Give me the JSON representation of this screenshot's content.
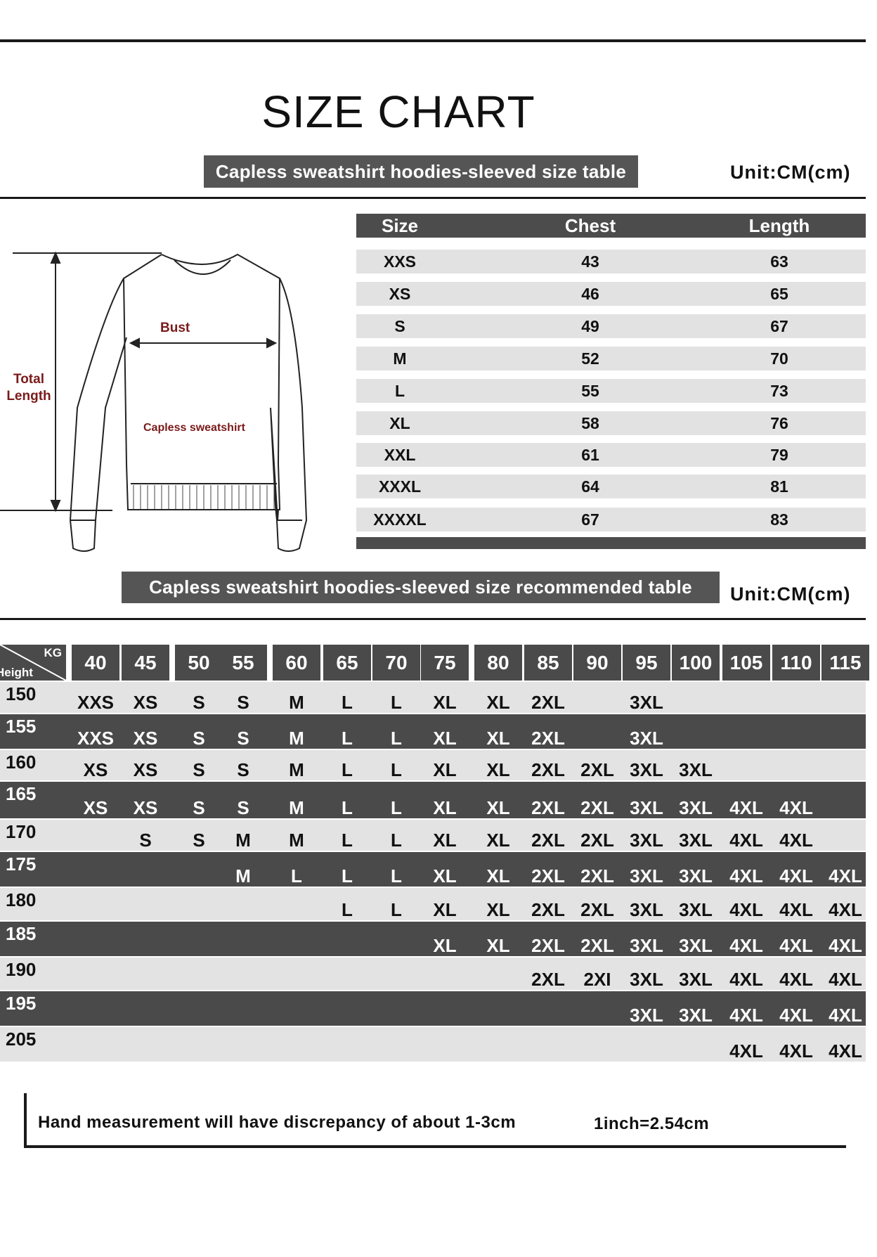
{
  "title": "SIZE CHART",
  "size_table": {
    "caption": "Capless sweatshirt hoodies-sleeved size  table",
    "unit": "Unit:CM(cm)",
    "headers": [
      "Size",
      "Chest",
      "Length"
    ],
    "rows": [
      [
        "XXS",
        "43",
        "63"
      ],
      [
        "XS",
        "46",
        "65"
      ],
      [
        "S",
        "49",
        "67"
      ],
      [
        "M",
        "52",
        "70"
      ],
      [
        "L",
        "55",
        "73"
      ],
      [
        "XL",
        "58",
        "76"
      ],
      [
        "XXL",
        "61",
        "79"
      ],
      [
        "XXXL",
        "64",
        "81"
      ],
      [
        "XXXXL",
        "67",
        "83"
      ]
    ]
  },
  "diagram": {
    "bust": "Bust",
    "total_length": "Total Length",
    "garment": "Capless sweatshirt"
  },
  "rec_table": {
    "caption": "Capless sweatshirt hoodies-sleeved size recommended table",
    "unit": "Unit:CM(cm)",
    "corner_kg": "KG",
    "corner_height": "Height",
    "weights": [
      "40",
      "45",
      "50",
      "55",
      "60",
      "65",
      "70",
      "75",
      "80",
      "85",
      "90",
      "95",
      "100",
      "105",
      "110",
      "115"
    ],
    "rows": [
      {
        "height": "150",
        "sizes": [
          "XXS",
          "XS",
          "S",
          "S",
          "M",
          "L",
          "L",
          "XL",
          "XL",
          "2XL",
          "",
          "3XL",
          "",
          "",
          "",
          ""
        ]
      },
      {
        "height": "155",
        "sizes": [
          "XXS",
          "XS",
          "S",
          "S",
          "M",
          "L",
          "L",
          "XL",
          "XL",
          "2XL",
          "",
          "3XL",
          "",
          "",
          "",
          ""
        ]
      },
      {
        "height": "160",
        "sizes": [
          "XS",
          "XS",
          "S",
          "S",
          "M",
          "L",
          "L",
          "XL",
          "XL",
          "2XL",
          "2XL",
          "3XL",
          "3XL",
          "",
          "",
          ""
        ]
      },
      {
        "height": "165",
        "sizes": [
          "XS",
          "XS",
          "S",
          "S",
          "M",
          "L",
          "L",
          "XL",
          "XL",
          "2XL",
          "2XL",
          "3XL",
          "3XL",
          "4XL",
          "4XL",
          ""
        ]
      },
      {
        "height": "170",
        "sizes": [
          "",
          "S",
          "S",
          "M",
          "M",
          "L",
          "L",
          "XL",
          "XL",
          "2XL",
          "2XL",
          "3XL",
          "3XL",
          "4XL",
          "4XL",
          ""
        ]
      },
      {
        "height": "175",
        "sizes": [
          "",
          "",
          "",
          "M",
          "L",
          "L",
          "L",
          "XL",
          "XL",
          "2XL",
          "2XL",
          "3XL",
          "3XL",
          "4XL",
          "4XL",
          "4XL"
        ]
      },
      {
        "height": "180",
        "sizes": [
          "",
          "",
          "",
          "",
          "",
          "L",
          "L",
          "XL",
          "XL",
          "2XL",
          "2XL",
          "3XL",
          "3XL",
          "4XL",
          "4XL",
          "4XL"
        ]
      },
      {
        "height": "185",
        "sizes": [
          "",
          "",
          "",
          "",
          "",
          "",
          "",
          "XL",
          "XL",
          "2XL",
          "2XL",
          "3XL",
          "3XL",
          "4XL",
          "4XL",
          "4XL"
        ]
      },
      {
        "height": "190",
        "sizes": [
          "",
          "",
          "",
          "",
          "",
          "",
          "",
          "",
          "",
          "2XL",
          "2XI",
          "3XL",
          "3XL",
          "4XL",
          "4XL",
          "4XL"
        ]
      },
      {
        "height": "195",
        "sizes": [
          "",
          "",
          "",
          "",
          "",
          "",
          "",
          "",
          "",
          "",
          "",
          "3XL",
          "3XL",
          "4XL",
          "4XL",
          "4XL"
        ]
      },
      {
        "height": "205",
        "sizes": [
          "",
          "",
          "",
          "",
          "",
          "",
          "",
          "",
          "",
          "",
          "",
          "",
          "",
          "4XL",
          "4XL",
          "4XL"
        ]
      }
    ]
  },
  "footer": {
    "note": "Hand measurement will have discrepancy of about  1-3cm",
    "conversion": "1inch=2.54cm"
  },
  "colors": {
    "dark": "#4a4a4a",
    "light": "#e3e3e3",
    "label_red": "#7a1a1a"
  }
}
